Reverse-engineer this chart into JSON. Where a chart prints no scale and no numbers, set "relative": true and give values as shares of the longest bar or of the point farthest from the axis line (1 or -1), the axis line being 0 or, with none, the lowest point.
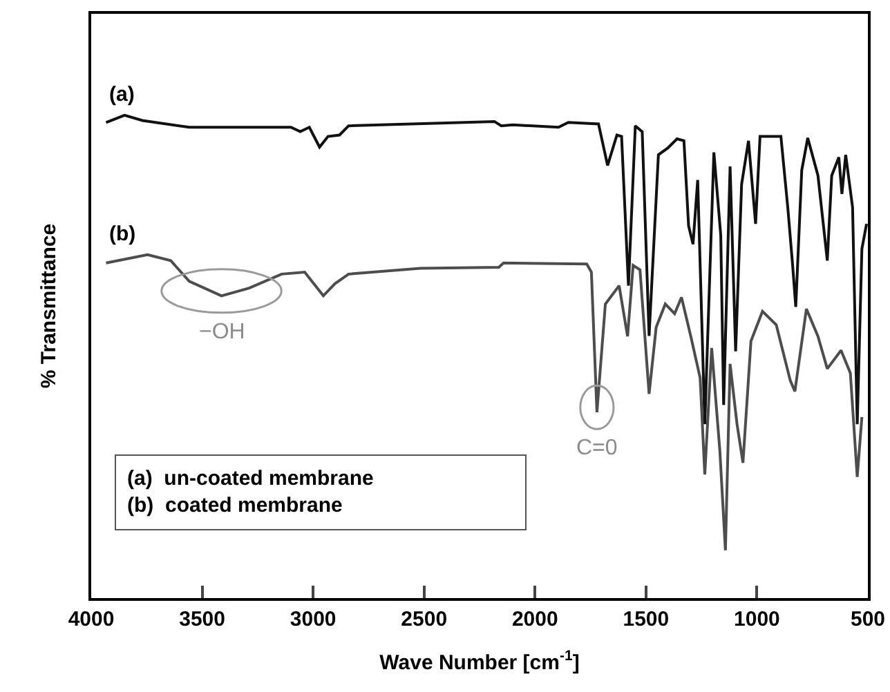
{
  "chart_data": {
    "type": "line",
    "relative": true,
    "xlabel": "Wave Number [cm$^{-1}$]",
    "ylabel": "% Transmittance",
    "xlim": [
      4000,
      500
    ],
    "xticks": [
      4000,
      3500,
      3000,
      2500,
      2000,
      1500,
      1000,
      500
    ],
    "legend": false,
    "grid": false,
    "marker": "none",
    "line_style": "solid",
    "annotations": [
      "(a)  un-coated membrane\n(b)  coated membrane",
      {
        "text": "−OH",
        "x": 3413,
        "y": 0.626
      },
      {
        "text": "C=0",
        "x": 1721,
        "y": 0.385
      }
    ],
    "series": [
      {
        "name": "(a)",
        "color": "#111111",
        "x": [
          3933,
          3850,
          3769,
          3558,
          3100,
          3058,
          3017,
          2971,
          2933,
          2881,
          2840,
          2183,
          2152,
          2100,
          1894,
          1850,
          1714,
          1673,
          1631,
          1610,
          1579,
          1548,
          1517,
          1486,
          1444,
          1402,
          1360,
          1329,
          1308,
          1288,
          1267,
          1235,
          1194,
          1163,
          1150,
          1121,
          1096,
          1069,
          1038,
          1006,
          986,
          892,
          861,
          840,
          825,
          798,
          771,
          725,
          683,
          663,
          631,
          617,
          600,
          569,
          548,
          527,
          506
        ],
        "values": [
          0.985,
          1.0,
          0.989,
          0.975,
          0.975,
          0.966,
          0.975,
          0.934,
          0.956,
          0.959,
          0.978,
          0.987,
          0.978,
          0.98,
          0.975,
          0.985,
          0.982,
          0.896,
          0.959,
          0.956,
          0.647,
          0.978,
          0.966,
          0.543,
          0.918,
          0.932,
          0.951,
          0.947,
          0.771,
          0.733,
          0.866,
          0.36,
          0.923,
          0.751,
          0.4,
          0.894,
          0.511,
          0.857,
          0.947,
          0.775,
          0.956,
          0.956,
          0.809,
          0.694,
          0.603,
          0.886,
          0.953,
          0.875,
          0.699,
          0.875,
          0.913,
          0.837,
          0.918,
          0.809,
          0.36,
          0.723,
          0.775
        ]
      },
      {
        "name": "(b)",
        "color": "#4d4d4d",
        "x": [
          3933,
          3746,
          3642,
          3558,
          3413,
          3288,
          3142,
          3038,
          2954,
          2902,
          2840,
          2517,
          2163,
          2142,
          1767,
          1746,
          1721,
          1683,
          1621,
          1583,
          1558,
          1527,
          1486,
          1454,
          1413,
          1371,
          1340,
          1298,
          1256,
          1235,
          1204,
          1167,
          1142,
          1121,
          1090,
          1063,
          1027,
          975,
          913,
          850,
          829,
          777,
          725,
          683,
          621,
          579,
          548,
          527
        ],
        "values": [
          0.694,
          0.711,
          0.699,
          0.656,
          0.626,
          0.642,
          0.671,
          0.675,
          0.626,
          0.651,
          0.671,
          0.683,
          0.685,
          0.694,
          0.692,
          0.675,
          0.385,
          0.609,
          0.647,
          0.542,
          0.689,
          0.68,
          0.423,
          0.561,
          0.609,
          0.589,
          0.623,
          0.542,
          0.456,
          0.256,
          0.518,
          0.304,
          0.099,
          0.485,
          0.361,
          0.28,
          0.532,
          0.594,
          0.566,
          0.451,
          0.428,
          0.599,
          0.542,
          0.475,
          0.513,
          0.466,
          0.251,
          0.375
        ]
      }
    ]
  }
}
